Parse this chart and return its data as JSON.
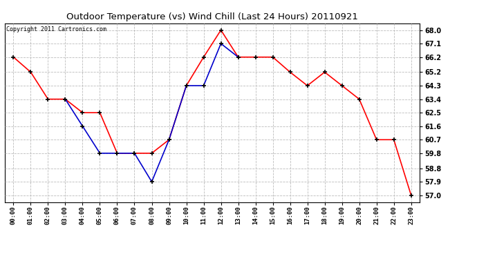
{
  "title": "Outdoor Temperature (vs) Wind Chill (Last 24 Hours) 20110921",
  "copyright": "Copyright 2011 Cartronics.com",
  "x_labels": [
    "00:00",
    "01:00",
    "02:00",
    "03:00",
    "04:00",
    "05:00",
    "06:00",
    "07:00",
    "08:00",
    "09:00",
    "10:00",
    "11:00",
    "12:00",
    "13:00",
    "14:00",
    "15:00",
    "16:00",
    "17:00",
    "18:00",
    "19:00",
    "20:00",
    "21:00",
    "22:00",
    "23:00"
  ],
  "temp_values": [
    66.2,
    65.2,
    63.4,
    63.4,
    62.5,
    62.5,
    59.8,
    59.8,
    59.8,
    60.7,
    64.3,
    66.2,
    68.0,
    66.2,
    66.2,
    66.2,
    65.2,
    64.3,
    65.2,
    64.3,
    63.4,
    60.7,
    60.7,
    57.0
  ],
  "windchill_x": [
    3,
    4,
    5,
    6,
    7,
    8,
    9,
    10,
    11,
    12,
    13
  ],
  "windchill_y": [
    63.4,
    61.6,
    59.8,
    59.8,
    59.8,
    57.9,
    60.7,
    64.3,
    64.3,
    67.1,
    66.2
  ],
  "temp_color": "#ff0000",
  "windchill_color": "#0000cc",
  "bg_color": "#ffffff",
  "plot_bg_color": "#ffffff",
  "grid_color": "#bbbbbb",
  "y_ticks": [
    57.0,
    57.9,
    58.8,
    59.8,
    60.7,
    61.6,
    62.5,
    63.4,
    64.3,
    65.2,
    66.2,
    67.1,
    68.0
  ],
  "y_min": 56.55,
  "y_max": 68.45
}
